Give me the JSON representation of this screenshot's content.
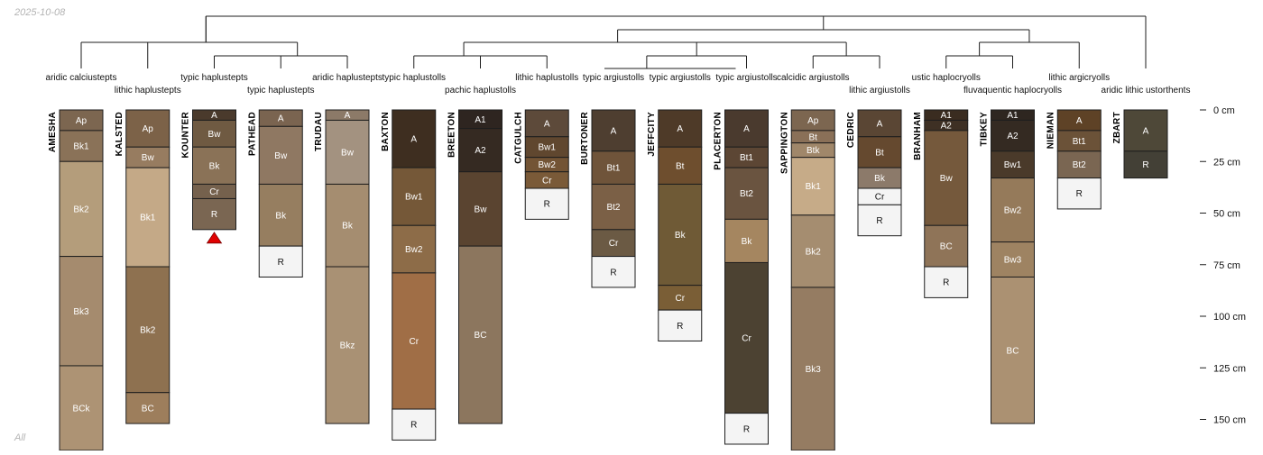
{
  "header": {
    "date": "2025-10-08"
  },
  "footer": {
    "label": "All"
  },
  "depth_axis": {
    "unit": "cm",
    "ticks": [
      {
        "depth": 0,
        "label": "0 cm"
      },
      {
        "depth": 25,
        "label": "25 cm"
      },
      {
        "depth": 50,
        "label": "50 cm"
      },
      {
        "depth": 75,
        "label": "75 cm"
      },
      {
        "depth": 100,
        "label": "100 cm"
      },
      {
        "depth": 125,
        "label": "125 cm"
      },
      {
        "depth": 150,
        "label": "150 cm"
      }
    ]
  },
  "profiles": [
    {
      "name": "AMESHA",
      "classification": "aridic calciustepts",
      "horizons": [
        {
          "name": "Ap",
          "top": 0,
          "bottom": 10,
          "color": "#7c6650"
        },
        {
          "name": "Bk1",
          "top": 10,
          "bottom": 25,
          "color": "#8a7258"
        },
        {
          "name": "Bk2",
          "top": 25,
          "bottom": 71,
          "color": "#b49d7b"
        },
        {
          "name": "Bk3",
          "top": 71,
          "bottom": 124,
          "color": "#a58b6e"
        },
        {
          "name": "BCk",
          "top": 124,
          "bottom": 165,
          "color": "#ad9374"
        }
      ]
    },
    {
      "name": "KALSTED",
      "classification": "lithic haplustepts",
      "horizons": [
        {
          "name": "Ap",
          "top": 0,
          "bottom": 18,
          "color": "#7c6248"
        },
        {
          "name": "Bw",
          "top": 18,
          "bottom": 28,
          "color": "#977c60"
        },
        {
          "name": "Bk1",
          "top": 28,
          "bottom": 76,
          "color": "#c4a987"
        },
        {
          "name": "Bk2",
          "top": 76,
          "bottom": 137,
          "color": "#8e7150"
        },
        {
          "name": "BC",
          "top": 137,
          "bottom": 152,
          "color": "#9d7e5c"
        }
      ]
    },
    {
      "name": "KOUNTER",
      "classification": "typic haplustepts",
      "marker": "triangle",
      "horizons": [
        {
          "name": "A",
          "top": 0,
          "bottom": 5,
          "color": "#4a3a2c"
        },
        {
          "name": "Bw",
          "top": 5,
          "bottom": 18,
          "color": "#6f5a42"
        },
        {
          "name": "Bk",
          "top": 18,
          "bottom": 36,
          "color": "#8a7257"
        },
        {
          "name": "Cr",
          "top": 36,
          "bottom": 43,
          "color": "#75614d"
        },
        {
          "name": "R",
          "top": 43,
          "bottom": 58,
          "color": "#7a6652"
        }
      ]
    },
    {
      "name": "PATHEAD",
      "classification": "typic haplustepts",
      "horizons": [
        {
          "name": "A",
          "top": 0,
          "bottom": 8,
          "color": "#7a6450"
        },
        {
          "name": "Bw",
          "top": 8,
          "bottom": 36,
          "color": "#8f7862"
        },
        {
          "name": "Bk",
          "top": 36,
          "bottom": 66,
          "color": "#967e60"
        },
        {
          "name": "R",
          "top": 66,
          "bottom": 81,
          "color": "#f4f4f4"
        }
      ]
    },
    {
      "name": "TRUDAU",
      "classification": "aridic haplustepts",
      "horizons": [
        {
          "name": "A",
          "top": 0,
          "bottom": 5,
          "color": "#8c7a68"
        },
        {
          "name": "Bw",
          "top": 5,
          "bottom": 36,
          "color": "#a39280"
        },
        {
          "name": "Bk",
          "top": 36,
          "bottom": 76,
          "color": "#a58d70"
        },
        {
          "name": "Bkz",
          "top": 76,
          "bottom": 152,
          "color": "#a99174"
        }
      ]
    },
    {
      "name": "BAXTON",
      "classification": "typic haplustolls",
      "horizons": [
        {
          "name": "A",
          "top": 0,
          "bottom": 28,
          "color": "#3e2e20"
        },
        {
          "name": "Bw1",
          "top": 28,
          "bottom": 56,
          "color": "#755838"
        },
        {
          "name": "Bw2",
          "top": 56,
          "bottom": 79,
          "color": "#8d6c48"
        },
        {
          "name": "Cr",
          "top": 79,
          "bottom": 145,
          "color": "#a06e46"
        },
        {
          "name": "R",
          "top": 145,
          "bottom": 160,
          "color": "#f4f4f4"
        }
      ]
    },
    {
      "name": "BREETON",
      "classification": "pachic haplustolls",
      "horizons": [
        {
          "name": "A1",
          "top": 0,
          "bottom": 9,
          "color": "#2e2520"
        },
        {
          "name": "A2",
          "top": 9,
          "bottom": 30,
          "color": "#352a22"
        },
        {
          "name": "Bw",
          "top": 30,
          "bottom": 66,
          "color": "#5a4430"
        },
        {
          "name": "BC",
          "top": 66,
          "bottom": 152,
          "color": "#8c765e"
        }
      ]
    },
    {
      "name": "CATGULCH",
      "classification": "lithic haplustolls",
      "horizons": [
        {
          "name": "A",
          "top": 0,
          "bottom": 13,
          "color": "#5d4a3a"
        },
        {
          "name": "Bw1",
          "top": 13,
          "bottom": 23,
          "color": "#60472f"
        },
        {
          "name": "Bw2",
          "top": 23,
          "bottom": 30,
          "color": "#735435"
        },
        {
          "name": "Cr",
          "top": 30,
          "bottom": 38,
          "color": "#7a5a38"
        },
        {
          "name": "R",
          "top": 38,
          "bottom": 53,
          "color": "#f4f4f4"
        }
      ]
    },
    {
      "name": "BURTONER",
      "classification": "typic argiustolls",
      "horizons": [
        {
          "name": "A",
          "top": 0,
          "bottom": 20,
          "color": "#4e3e30"
        },
        {
          "name": "Bt1",
          "top": 20,
          "bottom": 36,
          "color": "#6f543a"
        },
        {
          "name": "Bt2",
          "top": 36,
          "bottom": 58,
          "color": "#7b6046"
        },
        {
          "name": "Cr",
          "top": 58,
          "bottom": 71,
          "color": "#6b5a44"
        },
        {
          "name": "R",
          "top": 71,
          "bottom": 86,
          "color": "#f4f4f4"
        }
      ]
    },
    {
      "name": "JEFFCITY",
      "classification": "typic argiustolls",
      "horizons": [
        {
          "name": "A",
          "top": 0,
          "bottom": 18,
          "color": "#4e3a28"
        },
        {
          "name": "Bt",
          "top": 18,
          "bottom": 36,
          "color": "#6e4e2e"
        },
        {
          "name": "Bk",
          "top": 36,
          "bottom": 85,
          "color": "#6f5a36"
        },
        {
          "name": "Cr",
          "top": 85,
          "bottom": 97,
          "color": "#7a5e36"
        },
        {
          "name": "R",
          "top": 97,
          "bottom": 112,
          "color": "#f4f4f4"
        }
      ]
    },
    {
      "name": "PLACERTON",
      "classification": "typic argiustolls",
      "horizons": [
        {
          "name": "A",
          "top": 0,
          "bottom": 18,
          "color": "#4a3a2e"
        },
        {
          "name": "Bt1",
          "top": 18,
          "bottom": 28,
          "color": "#5c4634"
        },
        {
          "name": "Bt2",
          "top": 28,
          "bottom": 53,
          "color": "#6a5440"
        },
        {
          "name": "Bk",
          "top": 53,
          "bottom": 74,
          "color": "#a58660"
        },
        {
          "name": "Cr",
          "top": 74,
          "bottom": 147,
          "color": "#4c4232"
        },
        {
          "name": "R",
          "top": 147,
          "bottom": 162,
          "color": "#f4f4f4"
        }
      ]
    },
    {
      "name": "SAPPINGTON",
      "classification": "calcidic argiustolls",
      "horizons": [
        {
          "name": "Ap",
          "top": 0,
          "bottom": 10,
          "color": "#7c6650"
        },
        {
          "name": "Bt",
          "top": 10,
          "bottom": 16,
          "color": "#8a7058"
        },
        {
          "name": "Btk",
          "top": 16,
          "bottom": 23,
          "color": "#a0876a"
        },
        {
          "name": "Bk1",
          "top": 23,
          "bottom": 51,
          "color": "#c6ab88"
        },
        {
          "name": "Bk2",
          "top": 51,
          "bottom": 86,
          "color": "#a58d70"
        },
        {
          "name": "Bk3",
          "top": 86,
          "bottom": 165,
          "color": "#957c62"
        }
      ]
    },
    {
      "name": "CEDRIC",
      "classification": "lithic argiustolls",
      "horizons": [
        {
          "name": "A",
          "top": 0,
          "bottom": 13,
          "color": "#5a4634"
        },
        {
          "name": "Bt",
          "top": 13,
          "bottom": 28,
          "color": "#65492f"
        },
        {
          "name": "Bk",
          "top": 28,
          "bottom": 38,
          "color": "#8c7a6a"
        },
        {
          "name": "Cr",
          "top": 38,
          "bottom": 46,
          "color": "#f4f4f4"
        },
        {
          "name": "R",
          "top": 46,
          "bottom": 61,
          "color": "#f4f4f4"
        }
      ]
    },
    {
      "name": "BRANHAM",
      "classification": "ustic haplocryolls",
      "horizons": [
        {
          "name": "A1",
          "top": 0,
          "bottom": 5,
          "color": "#3a2c20"
        },
        {
          "name": "A2",
          "top": 5,
          "bottom": 10,
          "color": "#3e3024"
        },
        {
          "name": "Bw",
          "top": 10,
          "bottom": 56,
          "color": "#75593c"
        },
        {
          "name": "BC",
          "top": 56,
          "bottom": 76,
          "color": "#8f7458"
        },
        {
          "name": "R",
          "top": 76,
          "bottom": 91,
          "color": "#f4f4f4"
        }
      ]
    },
    {
      "name": "TIBKEY",
      "classification": "fluvaquentic haplocryolls",
      "horizons": [
        {
          "name": "A1",
          "top": 0,
          "bottom": 5,
          "color": "#2e2620"
        },
        {
          "name": "A2",
          "top": 5,
          "bottom": 20,
          "color": "#342a22"
        },
        {
          "name": "Bw1",
          "top": 20,
          "bottom": 33,
          "color": "#4a3a2a"
        },
        {
          "name": "Bw2",
          "top": 33,
          "bottom": 64,
          "color": "#957a5a"
        },
        {
          "name": "Bw3",
          "top": 64,
          "bottom": 81,
          "color": "#9e8362"
        },
        {
          "name": "BC",
          "top": 81,
          "bottom": 152,
          "color": "#ab9172"
        }
      ]
    },
    {
      "name": "NIEMAN",
      "classification": "lithic argicryolls",
      "horizons": [
        {
          "name": "A",
          "top": 0,
          "bottom": 10,
          "color": "#5e4226"
        },
        {
          "name": "Bt1",
          "top": 10,
          "bottom": 20,
          "color": "#6b5238"
        },
        {
          "name": "Bt2",
          "top": 20,
          "bottom": 33,
          "color": "#7a6652"
        },
        {
          "name": "R",
          "top": 33,
          "bottom": 48,
          "color": "#f4f4f4"
        }
      ]
    },
    {
      "name": "ZBART",
      "classification": "aridic lithic ustorthents",
      "horizons": [
        {
          "name": "A",
          "top": 0,
          "bottom": 20,
          "color": "#4e4838"
        },
        {
          "name": "R",
          "top": 20,
          "bottom": 33,
          "color": "#434036"
        }
      ]
    }
  ]
}
